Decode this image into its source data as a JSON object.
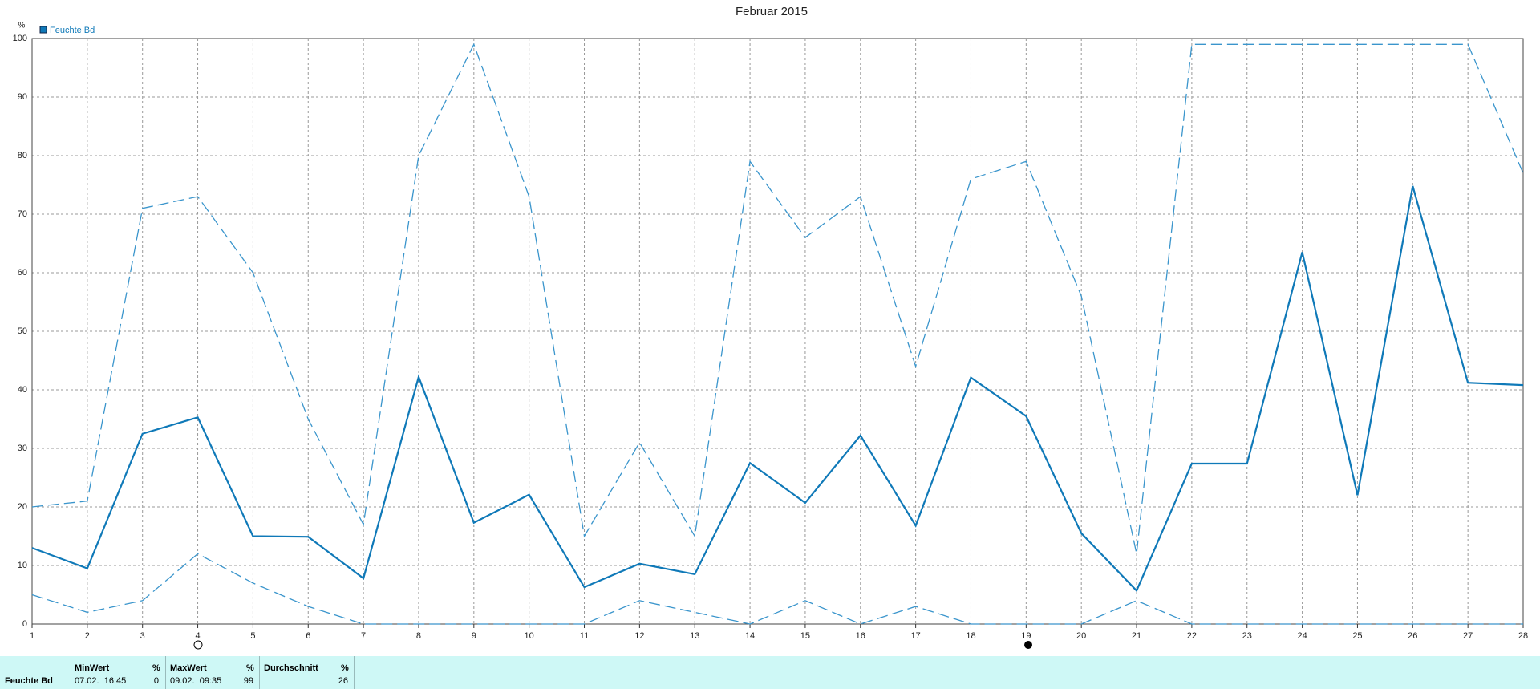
{
  "chart_data": {
    "type": "line",
    "title": "Februar 2015",
    "ylabel": "%",
    "x": [
      1,
      2,
      3,
      4,
      5,
      6,
      7,
      8,
      9,
      10,
      11,
      12,
      13,
      14,
      15,
      16,
      17,
      18,
      19,
      20,
      21,
      22,
      23,
      24,
      25,
      26,
      27,
      28
    ],
    "series": [
      {
        "name": "Feuchte Bd",
        "color": "#0f79b8",
        "values": [
          13,
          9.5,
          32.5,
          35.3,
          15,
          14.9,
          7.8,
          42.2,
          17.3,
          22.1,
          6.3,
          10.3,
          8.5,
          27.5,
          20.7,
          32.2,
          16.8,
          42.1,
          35.5,
          15.5,
          5.7,
          27.4,
          27.4,
          63.5,
          22,
          74.8,
          41.2,
          40.8
        ]
      },
      {
        "color": "#3a95cc",
        "dashed": true,
        "values": [
          20,
          21,
          71,
          73,
          60,
          35,
          17,
          80,
          99,
          73,
          15,
          31,
          15,
          79,
          66,
          73,
          44,
          76,
          79,
          56,
          12,
          99,
          99,
          99,
          99,
          99,
          99,
          77
        ]
      },
      {
        "color": "#3a95cc",
        "dashed": true,
        "values": [
          5,
          2,
          4,
          12,
          7,
          3,
          0,
          0,
          0,
          0,
          0,
          4,
          2,
          0,
          4,
          0,
          3,
          0,
          0,
          0,
          4,
          0,
          0,
          0,
          0,
          0,
          0,
          0
        ]
      }
    ],
    "xlim": [
      1,
      28
    ],
    "xticks": [
      1,
      2,
      3,
      4,
      5,
      6,
      7,
      8,
      9,
      10,
      11,
      12,
      13,
      14,
      15,
      16,
      17,
      18,
      19,
      20,
      21,
      22,
      23,
      24,
      25,
      26,
      27,
      28
    ],
    "ylim": [
      0,
      100
    ],
    "yticks": [
      0,
      10,
      20,
      30,
      40,
      50,
      60,
      70,
      80,
      90,
      100
    ],
    "grid": true
  },
  "table": {
    "header": [
      "MinWert",
      "%",
      "MaxWert",
      "%",
      "Durchschnitt",
      "%"
    ],
    "row": [
      "Feuchte Bd",
      "07.02.  16:45",
      "0",
      "09.02.  09:35",
      "99",
      "26"
    ]
  }
}
